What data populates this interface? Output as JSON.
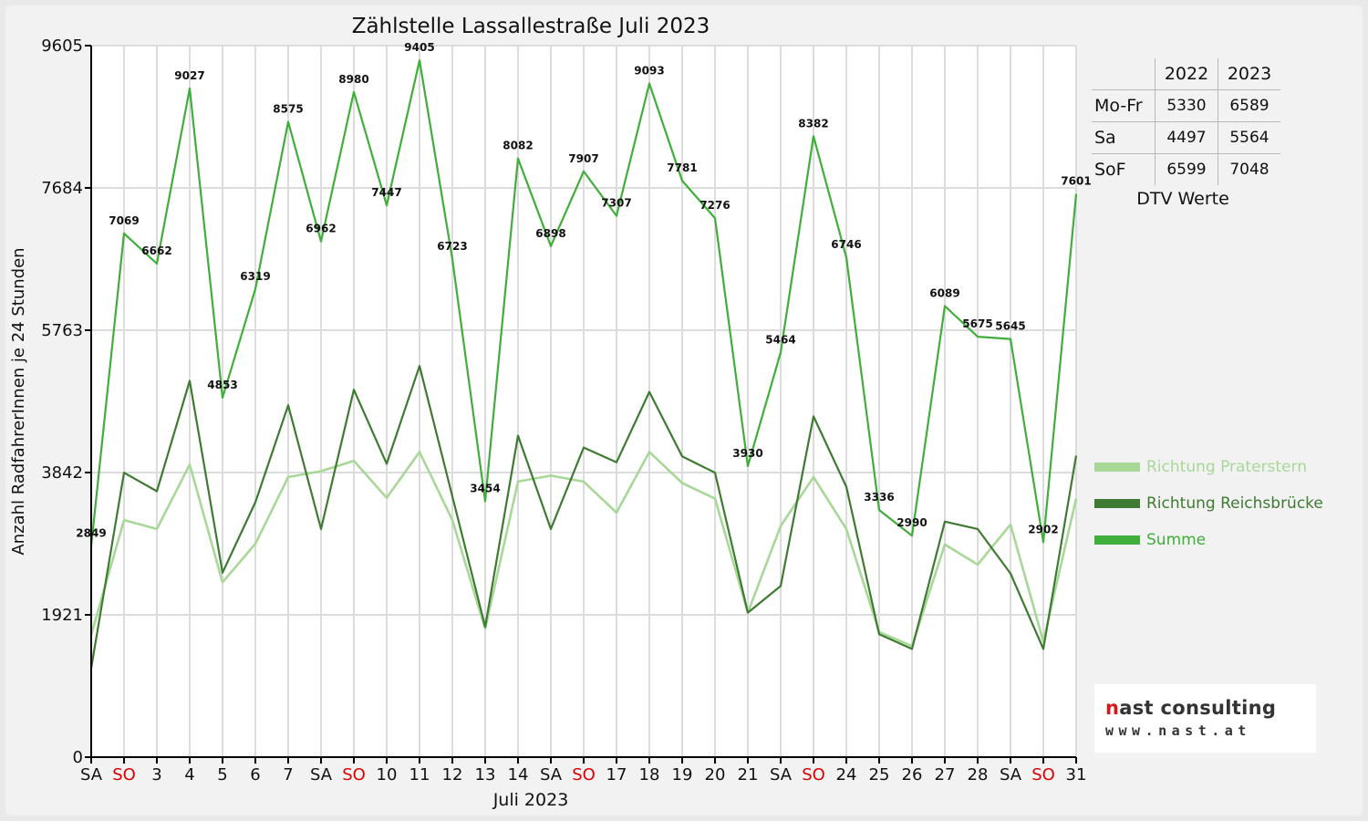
{
  "chart_data": {
    "type": "line",
    "title": "Zählstelle Lassallestraße Juli 2023",
    "xlabel": "Juli 2023",
    "ylabel": "Anzahl RadfahrerInnen je 24 Stunden",
    "ylim": [
      0,
      9605
    ],
    "yticks": [
      0,
      1921,
      3842,
      5763,
      7684,
      9605
    ],
    "grid": true,
    "legend_position": "right",
    "categories": [
      "SA",
      "SO",
      "3",
      "4",
      "5",
      "6",
      "7",
      "SA",
      "SO",
      "10",
      "11",
      "12",
      "13",
      "14",
      "SA",
      "SO",
      "17",
      "18",
      "19",
      "20",
      "21",
      "SA",
      "SO",
      "24",
      "25",
      "26",
      "27",
      "28",
      "SA",
      "SO",
      "31"
    ],
    "weekend_categories": [
      "SO"
    ],
    "series": [
      {
        "name": "Richtung Praterstern",
        "color": "#a8d898",
        "values": [
          1650,
          3200,
          3080,
          3950,
          2360,
          2880,
          3780,
          3860,
          4000,
          3500,
          4120,
          3200,
          1730,
          3720,
          3800,
          3720,
          3300,
          4120,
          3700,
          3490,
          1950,
          3120,
          3780,
          3080,
          1690,
          1500,
          2870,
          2600,
          3140,
          1560,
          3490
        ]
      },
      {
        "name": "Richtung Reichsbrücke",
        "color": "#3e7a32",
        "values": [
          1200,
          3840,
          3590,
          5080,
          2490,
          3440,
          4750,
          3080,
          4960,
          3960,
          5280,
          3520,
          1760,
          4340,
          3080,
          4180,
          3980,
          4930,
          4060,
          3840,
          1950,
          2310,
          4600,
          3650,
          1660,
          1460,
          3180,
          3080,
          2480,
          1460,
          4070
        ]
      },
      {
        "name": "Summe",
        "color": "#3fae3a",
        "values": [
          2849,
          7069,
          6662,
          9027,
          4853,
          6319,
          8575,
          6962,
          8980,
          7447,
          9405,
          6723,
          3454,
          8082,
          6898,
          7907,
          7307,
          9093,
          7781,
          7276,
          3930,
          5464,
          8382,
          6746,
          3336,
          2990,
          6089,
          5675,
          5645,
          2902,
          7601
        ]
      }
    ],
    "data_labels": [
      "2849",
      "7069",
      "6662",
      "9027",
      "4853",
      "6319",
      "8575",
      "6962",
      "8980",
      "7447",
      "9405",
      "6723",
      "3454",
      "8082",
      "6898",
      "7907",
      "7307",
      "9093",
      "7781",
      "7276",
      "3930",
      "5464",
      "8382",
      "6746",
      "3336",
      "2990",
      "6089",
      "5675",
      "5645",
      "2902",
      "7601"
    ],
    "weekend_label_color": "#dd0000",
    "axis_color": "#000000",
    "grid_color": "#dcdcdc"
  },
  "dtv_table": {
    "headers": [
      "",
      "2022",
      "2023"
    ],
    "rows": [
      {
        "label": "Mo-Fr",
        "v2022": "5330",
        "v2023": "6589"
      },
      {
        "label": "Sa",
        "v2022": "4497",
        "v2023": "5564"
      },
      {
        "label": "SoF",
        "v2022": "6599",
        "v2023": "7048"
      }
    ],
    "caption": "DTV Werte"
  },
  "legend": [
    {
      "label": "Richtung Praterstern",
      "color": "#a8d898"
    },
    {
      "label": "Richtung Reichsbrücke",
      "color": "#3e7a32"
    },
    {
      "label": "Summe",
      "color": "#3fae3a"
    }
  ],
  "logo": {
    "brand_accent": "n",
    "brand_rest": "ast consulting",
    "url_text": "www.nast.at",
    "accent_color": "#d11a1a"
  }
}
